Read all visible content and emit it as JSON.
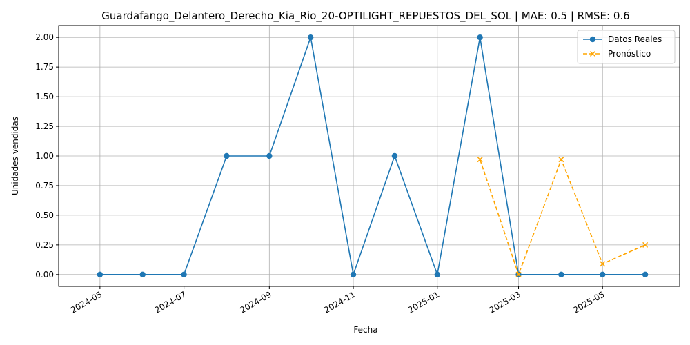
{
  "chart_data": {
    "type": "line",
    "title": "Guardafango_Delantero_Derecho_Kia_Rio_20-OPTILIGHT_REPUESTOS_DEL_SOL | MAE: 0.5 | RMSE: 0.6",
    "xlabel": "Fecha",
    "ylabel": "Unidades vendidas",
    "grid": true,
    "legend_position": "top-right",
    "xlim": [
      "2024-04-01",
      "2025-06-26"
    ],
    "ylim": [
      -0.1,
      2.1
    ],
    "x_ticks": [
      "2024-05",
      "2024-07",
      "2024-09",
      "2024-11",
      "2025-01",
      "2025-03",
      "2025-05"
    ],
    "y_ticks": [
      "0.00",
      "0.25",
      "0.50",
      "0.75",
      "1.00",
      "1.25",
      "1.50",
      "1.75",
      "2.00"
    ],
    "series": [
      {
        "name": "Datos Reales",
        "color": "#1f77b4",
        "style": "solid",
        "marker": "circle",
        "x": [
          "2024-05-01",
          "2024-06-01",
          "2024-07-01",
          "2024-08-01",
          "2024-09-01",
          "2024-10-01",
          "2024-11-01",
          "2024-12-01",
          "2025-01-01",
          "2025-02-01",
          "2025-03-01",
          "2025-04-01",
          "2025-05-01",
          "2025-06-01"
        ],
        "values": [
          0,
          0,
          0,
          1,
          1,
          2,
          0,
          1,
          0,
          2,
          0,
          0,
          0,
          0
        ]
      },
      {
        "name": "Pronóstico",
        "color": "#ffa500",
        "style": "dashed",
        "marker": "x",
        "x": [
          "2025-02-01",
          "2025-03-01",
          "2025-04-01",
          "2025-05-01",
          "2025-06-01"
        ],
        "values": [
          0.97,
          0.0,
          0.97,
          0.09,
          0.25
        ]
      }
    ]
  }
}
